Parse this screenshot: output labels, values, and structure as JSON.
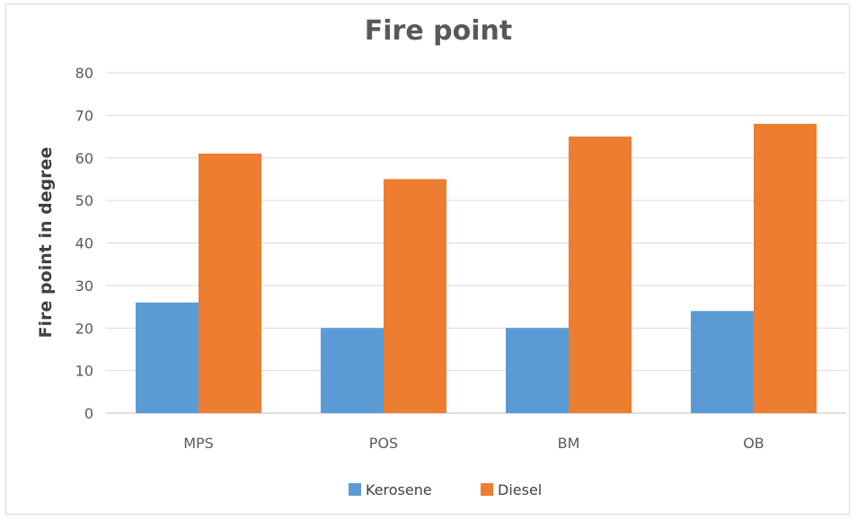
{
  "chart_data": {
    "type": "bar",
    "title": "Fire point",
    "xlabel": "",
    "ylabel": "Fire point in degree",
    "categories": [
      "MPS",
      "POS",
      "BM",
      "OB"
    ],
    "series": [
      {
        "name": "Kerosene",
        "color": "#5b9bd5",
        "values": [
          26,
          20,
          20,
          24
        ]
      },
      {
        "name": "Diesel",
        "color": "#ed7d31",
        "values": [
          61,
          55,
          65,
          68
        ]
      }
    ],
    "ylim": [
      0,
      80
    ],
    "yticks": [
      0,
      10,
      20,
      30,
      40,
      50,
      60,
      70,
      80
    ],
    "grid": true,
    "gridline_color": "#d9d9d9",
    "legend_position": "bottom"
  }
}
